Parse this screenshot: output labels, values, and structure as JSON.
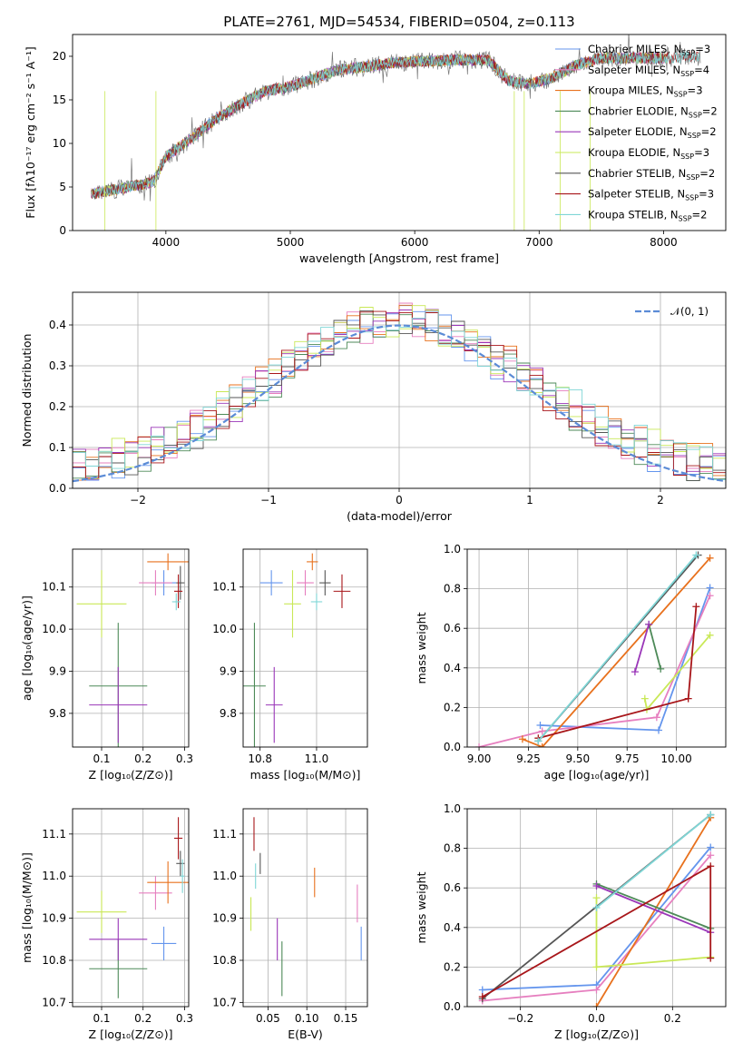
{
  "figure_title": "PLATE=2761, MJD=54534, FIBERID=0504, z=0.113",
  "models": [
    {
      "name": "Chabrier MILES",
      "nssp": "3",
      "color": "#6495ed"
    },
    {
      "name": "Salpeter MILES",
      "nssp": "4",
      "color": "#e67fbf"
    },
    {
      "name": "Kroupa MILES",
      "nssp": "3",
      "color": "#e8711d"
    },
    {
      "name": "Chabrier ELODIE",
      "nssp": "2",
      "color": "#4d8a58"
    },
    {
      "name": "Salpeter ELODIE",
      "nssp": "2",
      "color": "#9a36b8"
    },
    {
      "name": "Kroupa ELODIE",
      "nssp": "3",
      "color": "#c9e857"
    },
    {
      "name": "Chabrier STELIB",
      "nssp": "2",
      "color": "#555555"
    },
    {
      "name": "Salpeter STELIB",
      "nssp": "3",
      "color": "#a8161a"
    },
    {
      "name": "Kroupa STELIB",
      "nssp": "2",
      "color": "#7fd6d6"
    }
  ],
  "chart_data": [
    {
      "id": "spectrum",
      "type": "line",
      "xlabel": "wavelength [Angstrom, rest frame]",
      "ylabel": "Flux [fλ10⁻¹⁷ erg cm⁻² s⁻¹ A⁻¹]",
      "xlim": [
        3250,
        8500
      ],
      "ylim": [
        0,
        22.5
      ],
      "xticks": [
        "4000",
        "5000",
        "6000",
        "7000",
        "8000"
      ],
      "yticks": [
        "0",
        "5",
        "10",
        "15",
        "20"
      ],
      "data_color": "#777777",
      "continuum_x": [
        3400,
        3700,
        3900,
        4000,
        4200,
        4400,
        4600,
        4800,
        5000,
        5200,
        5400,
        5600,
        5800,
        6000,
        6200,
        6400,
        6600,
        6750,
        6900,
        7100,
        7300,
        7500,
        7800,
        8000,
        8300
      ],
      "continuum_y": [
        4.2,
        5.0,
        5.6,
        8.5,
        10.5,
        12.8,
        14.5,
        16.0,
        16.5,
        17.5,
        18.5,
        18.8,
        19.2,
        19.4,
        19.5,
        19.6,
        19.5,
        17.2,
        16.8,
        17.5,
        19.0,
        19.8,
        19.8,
        19.8,
        20.0
      ],
      "legend_loc": "upper right",
      "grid": false
    },
    {
      "id": "residuals",
      "type": "histogram",
      "xlabel": "(data-model)/error",
      "ylabel": "Normed distribution",
      "xlim": [
        -2.5,
        2.5
      ],
      "ylim": [
        0,
        0.48
      ],
      "xticks": [
        "−2",
        "−1",
        "0",
        "1",
        "2"
      ],
      "yticks": [
        "0.0",
        "0.1",
        "0.2",
        "0.3",
        "0.4"
      ],
      "gaussian_label": "𝒩(0, 1)",
      "gaussian_color": "#5b8bd6",
      "bin_width": 0.1,
      "grid": true
    },
    {
      "id": "age_vs_Z",
      "type": "errorbar",
      "xlabel": "Z [log₁₀(Z/Z⊙)]",
      "ylabel": "age  [log₁₀(age/yr)]",
      "xlim": [
        0.03,
        0.31
      ],
      "ylim": [
        9.72,
        10.19
      ],
      "xticks": [
        "0.1",
        "0.2",
        "0.3"
      ],
      "yticks": [
        "9.8",
        "9.9",
        "10.0",
        "10.1"
      ],
      "points": [
        {
          "x": 0.25,
          "y": 10.11,
          "xerr": 0.03,
          "yerr": 0.03
        },
        {
          "x": 0.23,
          "y": 10.11,
          "xerr": 0.04,
          "yerr": 0.03
        },
        {
          "x": 0.26,
          "y": 10.16,
          "xerr": 0.05,
          "yerr": 0.02
        },
        {
          "x": 0.14,
          "y": 9.865,
          "xerr": 0.07,
          "yerr": 0.15
        },
        {
          "x": 0.14,
          "y": 9.82,
          "xerr": 0.07,
          "yerr": 0.09
        },
        {
          "x": 0.1,
          "y": 10.06,
          "xerr": 0.06,
          "yerr": 0.08
        },
        {
          "x": 0.29,
          "y": 10.11,
          "xerr": 0.01,
          "yerr": 0.04
        },
        {
          "x": 0.285,
          "y": 10.09,
          "xerr": 0.01,
          "yerr": 0.04
        },
        {
          "x": 0.28,
          "y": 10.065,
          "xerr": 0.01,
          "yerr": 0.02
        }
      ]
    },
    {
      "id": "age_vs_mass",
      "type": "errorbar",
      "xlabel": "mass [log₁₀(M/M⊙)]",
      "ylabel": "",
      "xlim": [
        10.74,
        11.18
      ],
      "ylim": [
        9.72,
        10.19
      ],
      "xticks": [
        "10.8",
        "11.0"
      ],
      "yticks": [
        "9.8",
        "9.9",
        "10.0",
        "10.1"
      ],
      "points": [
        {
          "x": 10.84,
          "y": 10.11,
          "xerr": 0.04,
          "yerr": 0.03
        },
        {
          "x": 10.96,
          "y": 10.11,
          "xerr": 0.03,
          "yerr": 0.03
        },
        {
          "x": 10.985,
          "y": 10.16,
          "xerr": 0.02,
          "yerr": 0.02
        },
        {
          "x": 10.78,
          "y": 9.865,
          "xerr": 0.04,
          "yerr": 0.15
        },
        {
          "x": 10.85,
          "y": 9.82,
          "xerr": 0.03,
          "yerr": 0.09
        },
        {
          "x": 10.915,
          "y": 10.06,
          "xerr": 0.03,
          "yerr": 0.08
        },
        {
          "x": 11.03,
          "y": 10.11,
          "xerr": 0.02,
          "yerr": 0.03
        },
        {
          "x": 11.09,
          "y": 10.09,
          "xerr": 0.03,
          "yerr": 0.04
        },
        {
          "x": 11.0,
          "y": 10.065,
          "xerr": 0.02,
          "yerr": 0.02
        }
      ]
    },
    {
      "id": "weight_vs_age",
      "type": "line",
      "xlabel": "age  [log₁₀(age/yr)]",
      "ylabel": "mass weight",
      "xlim": [
        8.94,
        10.25
      ],
      "ylim": [
        0,
        1
      ],
      "xticks": [
        "9.00",
        "9.25",
        "9.50",
        "9.75",
        "10.00"
      ],
      "yticks": [
        "0.0",
        "0.2",
        "0.4",
        "0.6",
        "0.8",
        "1.0"
      ],
      "series": [
        {
          "x": [
            9.31,
            9.91,
            10.17
          ],
          "y": [
            0.11,
            0.085,
            0.805
          ]
        },
        {
          "x": [
            9.0,
            9.32,
            9.9,
            10.17
          ],
          "y": [
            0.0,
            0.08,
            0.15,
            0.765
          ]
        },
        {
          "x": [
            9.22,
            9.32,
            10.17
          ],
          "y": [
            0.04,
            0.0,
            0.955
          ]
        },
        {
          "x": [
            9.86,
            9.92
          ],
          "y": [
            0.62,
            0.395
          ]
        },
        {
          "x": [
            9.79,
            9.86
          ],
          "y": [
            0.38,
            0.62
          ]
        },
        {
          "x": [
            9.84,
            9.85,
            10.17
          ],
          "y": [
            0.245,
            0.19,
            0.565
          ]
        },
        {
          "x": [
            9.3,
            10.11
          ],
          "y": [
            0.03,
            0.97
          ]
        },
        {
          "x": [
            9.3,
            10.06,
            10.1
          ],
          "y": [
            0.045,
            0.245,
            0.71
          ]
        },
        {
          "x": [
            9.3,
            10.1
          ],
          "y": [
            0.03,
            0.97
          ]
        }
      ],
      "grid": true
    },
    {
      "id": "mass_vs_Z",
      "type": "errorbar",
      "xlabel": "Z [log₁₀(Z/Z⊙)]",
      "ylabel": "mass [log₁₀(M/M⊙)]",
      "xlim": [
        0.03,
        0.31
      ],
      "ylim": [
        10.69,
        11.16
      ],
      "xticks": [
        "0.1",
        "0.2",
        "0.3"
      ],
      "yticks": [
        "10.7",
        "10.8",
        "10.9",
        "11.0",
        "11.1"
      ],
      "points": [
        {
          "x": 0.25,
          "y": 10.84,
          "xerr": 0.03,
          "yerr": 0.04
        },
        {
          "x": 0.23,
          "y": 10.96,
          "xerr": 0.04,
          "yerr": 0.04
        },
        {
          "x": 0.26,
          "y": 10.985,
          "xerr": 0.05,
          "yerr": 0.05
        },
        {
          "x": 0.14,
          "y": 10.78,
          "xerr": 0.07,
          "yerr": 0.07
        },
        {
          "x": 0.14,
          "y": 10.85,
          "xerr": 0.07,
          "yerr": 0.05
        },
        {
          "x": 0.1,
          "y": 10.915,
          "xerr": 0.06,
          "yerr": 0.05
        },
        {
          "x": 0.29,
          "y": 11.03,
          "xerr": 0.01,
          "yerr": 0.03
        },
        {
          "x": 0.285,
          "y": 11.09,
          "xerr": 0.01,
          "yerr": 0.05
        },
        {
          "x": 0.295,
          "y": 11.0,
          "xerr": 0.005,
          "yerr": 0.04
        }
      ]
    },
    {
      "id": "mass_vs_EBV",
      "type": "errorbar",
      "xlabel": "E(B-V)",
      "ylabel": "",
      "xlim": [
        0.018,
        0.178
      ],
      "ylim": [
        10.69,
        11.16
      ],
      "xticks": [
        "0.05",
        "0.10",
        "0.15"
      ],
      "yticks": [
        "10.7",
        "10.8",
        "10.9",
        "11.0",
        "11.1"
      ],
      "points": [
        {
          "x": 0.17,
          "y": 10.84,
          "yerr": 0.04
        },
        {
          "x": 0.165,
          "y": 10.935,
          "yerr": 0.045
        },
        {
          "x": 0.11,
          "y": 10.985,
          "yerr": 0.035
        },
        {
          "x": 0.068,
          "y": 10.78,
          "yerr": 0.065
        },
        {
          "x": 0.062,
          "y": 10.85,
          "yerr": 0.05
        },
        {
          "x": 0.028,
          "y": 10.91,
          "yerr": 0.04
        },
        {
          "x": 0.04,
          "y": 11.03,
          "yerr": 0.025
        },
        {
          "x": 0.032,
          "y": 11.1,
          "yerr": 0.04
        },
        {
          "x": 0.034,
          "y": 11.0,
          "yerr": 0.03
        }
      ],
      "grid": true
    },
    {
      "id": "weight_vs_Z",
      "type": "line",
      "xlabel": "Z [log₁₀(Z/Z⊙)]",
      "ylabel": "mass weight",
      "xlim": [
        -0.34,
        0.34
      ],
      "ylim": [
        0,
        1
      ],
      "xticks": [
        "−0.2",
        "0.0",
        "0.2"
      ],
      "yticks": [
        "0.0",
        "0.2",
        "0.4",
        "0.6",
        "0.8",
        "1.0"
      ],
      "series": [
        {
          "x": [
            -0.3,
            0.0,
            0.3
          ],
          "y": [
            0.085,
            0.11,
            0.805
          ]
        },
        {
          "x": [
            -0.3,
            0.0,
            0.3
          ],
          "y": [
            0.03,
            0.085,
            0.765
          ]
        },
        {
          "x": [
            0.0,
            0.3
          ],
          "y": [
            0.0,
            0.955
          ]
        },
        {
          "x": [
            0.0,
            0.3
          ],
          "y": [
            0.62,
            0.395
          ]
        },
        {
          "x": [
            0.0,
            0.3
          ],
          "y": [
            0.61,
            0.375
          ]
        },
        {
          "x": [
            0.0,
            0.0,
            0.3
          ],
          "y": [
            0.55,
            0.2,
            0.25
          ]
        },
        {
          "x": [
            -0.3,
            0.3
          ],
          "y": [
            0.04,
            0.97
          ]
        },
        {
          "x": [
            -0.3,
            0.3,
            0.3
          ],
          "y": [
            0.05,
            0.71,
            0.245
          ]
        },
        {
          "x": [
            0.0,
            0.3
          ],
          "y": [
            0.5,
            0.97
          ]
        }
      ],
      "grid": true
    }
  ]
}
